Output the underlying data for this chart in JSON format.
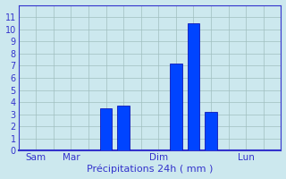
{
  "bar_positions": [
    5,
    6,
    9,
    10,
    11
  ],
  "bar_heights": [
    3.5,
    3.7,
    7.2,
    10.5,
    3.2
  ],
  "bar_width": 0.7,
  "bar_color": "#0044ff",
  "bar_edge_color": "#0000aa",
  "background_color": "#cce8ee",
  "plot_bg_color": "#cce8ee",
  "grid_color": "#a0bfc0",
  "xlabel": "Précipitations 24h ( mm )",
  "xlabel_color": "#3333cc",
  "tick_label_color": "#3333cc",
  "ylim": [
    0,
    12
  ],
  "yticks": [
    0,
    1,
    2,
    3,
    4,
    5,
    6,
    7,
    8,
    9,
    10,
    11
  ],
  "xtick_positions": [
    1,
    3,
    8,
    13
  ],
  "xtick_labels": [
    "Sam",
    "Mar",
    "Dim",
    "Lun"
  ],
  "vline_positions": [
    1,
    3,
    8,
    13
  ],
  "xlim": [
    0,
    15
  ],
  "figsize": [
    3.2,
    2.0
  ],
  "dpi": 100
}
